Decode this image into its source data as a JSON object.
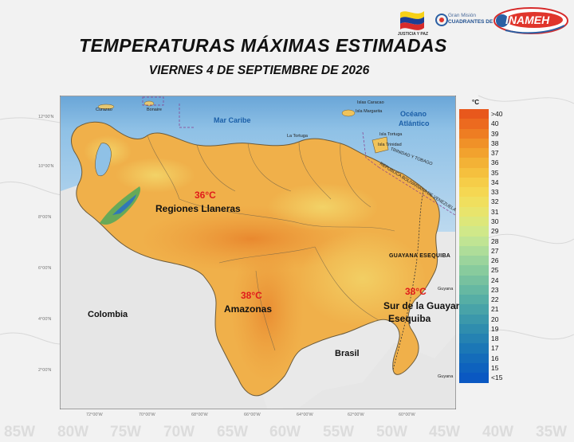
{
  "title": "TEMPERATURAS MÁXIMAS ESTIMADAS",
  "subtitle": "VIERNES 4 DE SEPTIEMBRE DE 2026",
  "logos": {
    "flag_caption": "JUSTICIA Y PAZ",
    "gm_line1": "Gran Misión",
    "gm_line2": "CUADRANTES DE PAZ",
    "inameh": "INAMEH"
  },
  "map": {
    "sea_labels": [
      "Mar Caribe",
      "Océano",
      "Atlántico"
    ],
    "islands": [
      "Curazao",
      "Bonaire",
      "Islas Caracao",
      "Isla Margarita",
      "Isla Tortuga",
      "La Tortuga",
      "Isla Trinidad",
      "TRINIDAD Y TOBAGO"
    ],
    "border_label": "REPUBLICA BOLIVARIANA DE VENEZUELA",
    "guayana_label": "GUAYANA ESEQUIBA",
    "guyana_towns": [
      "Guyana",
      "Guyana"
    ],
    "countries": [
      "Colombia",
      "Brasil"
    ],
    "regions": [
      {
        "temp": "36°C",
        "name": "Regiones Llaneras"
      },
      {
        "temp": "38°C",
        "name": "Amazonas"
      },
      {
        "temp": "38°C",
        "name_line1": "Sur de la Guayana",
        "name_line2": "Esequiba"
      }
    ],
    "lat_ticks": [
      "12°00'N",
      "10°00'N",
      "8°00'N",
      "6°00'N",
      "4°00'N",
      "2°00'N"
    ],
    "lon_ticks": [
      "72°00'W",
      "70°00'W",
      "68°00'W",
      "66°00'W",
      "64°00'W",
      "62°00'W",
      "60°00'W"
    ],
    "bg_ticks": [
      "85W",
      "80W",
      "75W",
      "70W",
      "65W",
      "60W",
      "55W",
      "50W",
      "45W",
      "40W",
      "35W"
    ]
  },
  "legend": {
    "unit": "°C",
    "levels": [
      ">40",
      "40",
      "39",
      "38",
      "37",
      "36",
      "35",
      "34",
      "33",
      "32",
      "31",
      "30",
      "29",
      "28",
      "27",
      "26",
      "25",
      "24",
      "23",
      "22",
      "21",
      "20",
      "19",
      "18",
      "17",
      "16",
      "15",
      "<15"
    ],
    "colors": [
      "#e8581c",
      "#ec6a1f",
      "#ee7d22",
      "#f09128",
      "#f2a22e",
      "#f3b236",
      "#f5c03e",
      "#f6cd48",
      "#f5d752",
      "#f0df5e",
      "#e8e46c",
      "#dde77a",
      "#d0e889",
      "#c0e493",
      "#aedd99",
      "#9bd49c",
      "#88cb9d",
      "#77c19f",
      "#66b8a2",
      "#56aea5",
      "#48a3a8",
      "#3b98ab",
      "#2f8dae",
      "#2582b2",
      "#1b77b6",
      "#146cba",
      "#0e62be",
      "#0a58c2"
    ]
  }
}
